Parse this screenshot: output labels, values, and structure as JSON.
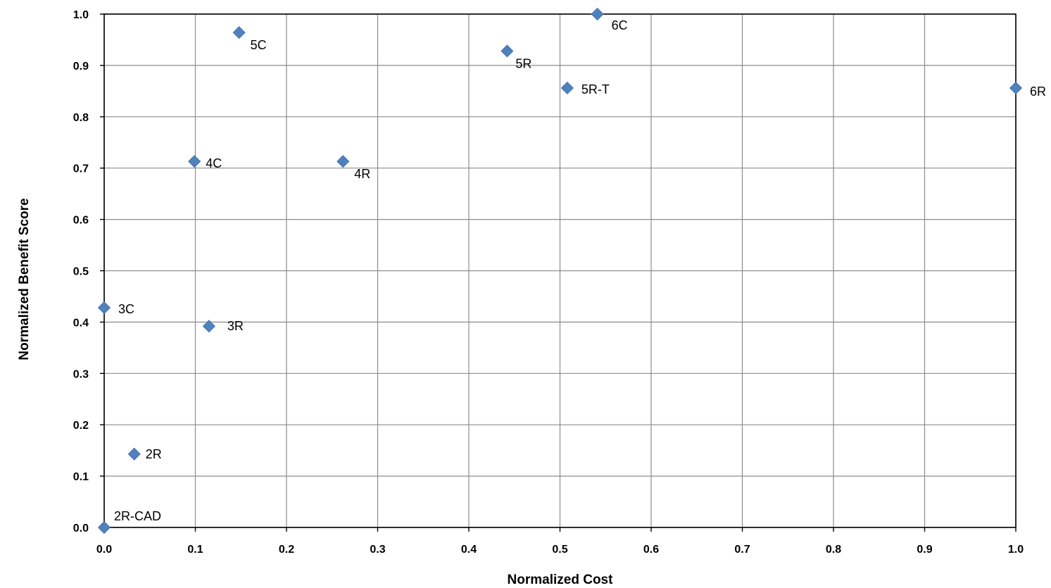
{
  "chart_data": {
    "type": "scatter",
    "xlabel": "Normalized Cost",
    "ylabel": "Normalized Benefit Score",
    "xlim": [
      0.0,
      1.0
    ],
    "ylim": [
      0.0,
      1.0
    ],
    "x_ticks": [
      "0.0",
      "0.1",
      "0.2",
      "0.3",
      "0.4",
      "0.5",
      "0.6",
      "0.7",
      "0.8",
      "0.9",
      "1.0"
    ],
    "y_ticks": [
      "0.0",
      "0.1",
      "0.2",
      "0.3",
      "0.4",
      "0.5",
      "0.6",
      "0.7",
      "0.8",
      "0.9",
      "1.0"
    ],
    "grid": true,
    "marker": "diamond",
    "marker_color": "#4f81bd",
    "points": [
      {
        "label": "2R-CAD",
        "x": 0.0,
        "y": 0.0
      },
      {
        "label": "2R",
        "x": 0.033,
        "y": 0.143
      },
      {
        "label": "3C",
        "x": 0.0,
        "y": 0.428
      },
      {
        "label": "3R",
        "x": 0.115,
        "y": 0.392
      },
      {
        "label": "4C",
        "x": 0.099,
        "y": 0.713
      },
      {
        "label": "4R",
        "x": 0.262,
        "y": 0.713
      },
      {
        "label": "5C",
        "x": 0.148,
        "y": 0.964
      },
      {
        "label": "5R",
        "x": 0.442,
        "y": 0.928
      },
      {
        "label": "5R-T",
        "x": 0.508,
        "y": 0.856
      },
      {
        "label": "6C",
        "x": 0.541,
        "y": 1.0
      },
      {
        "label": "6R",
        "x": 1.0,
        "y": 0.856
      }
    ]
  }
}
